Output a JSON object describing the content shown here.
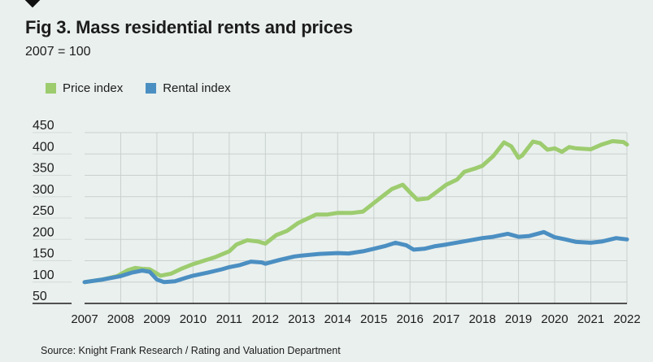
{
  "figure": {
    "title": "Fig 3. Mass residential rents and prices",
    "subtitle": "2007 = 100",
    "source": "Source: Knight Frank Research / Rating and Valuation Department",
    "icon": "diamond-marker-icon"
  },
  "colors": {
    "price": "#9dcc6f",
    "rental": "#4b8fc2",
    "grid": "#c9d0ce",
    "axis": "#1c1c1c",
    "background": "#eaf0ee"
  },
  "chart_data": {
    "type": "line",
    "title": "Fig 3. Mass residential rents and prices",
    "subtitle": "2007 = 100",
    "xlabel": "",
    "ylabel": "",
    "xlim": [
      2007,
      2022
    ],
    "ylim": [
      50,
      450
    ],
    "grid": true,
    "legend_position": "top-left",
    "x_ticks": [
      "2007",
      "2008",
      "2009",
      "2010",
      "2011",
      "2012",
      "2013",
      "2014",
      "2015",
      "2016",
      "2017",
      "2018",
      "2019",
      "2020",
      "2021",
      "2022"
    ],
    "y_ticks": [
      "50",
      "100",
      "150",
      "200",
      "250",
      "300",
      "350",
      "400",
      "450"
    ],
    "series": [
      {
        "name": "Price index",
        "key": "price",
        "points": [
          [
            2007.0,
            100
          ],
          [
            2007.5,
            106
          ],
          [
            2007.9,
            114
          ],
          [
            2008.2,
            128
          ],
          [
            2008.4,
            133
          ],
          [
            2008.6,
            131
          ],
          [
            2008.8,
            130
          ],
          [
            2009.0,
            120
          ],
          [
            2009.1,
            115
          ],
          [
            2009.4,
            120
          ],
          [
            2009.7,
            132
          ],
          [
            2010.0,
            142
          ],
          [
            2010.3,
            150
          ],
          [
            2010.6,
            158
          ],
          [
            2011.0,
            172
          ],
          [
            2011.2,
            188
          ],
          [
            2011.5,
            198
          ],
          [
            2011.8,
            195
          ],
          [
            2012.0,
            190
          ],
          [
            2012.3,
            210
          ],
          [
            2012.6,
            220
          ],
          [
            2012.9,
            238
          ],
          [
            2013.2,
            250
          ],
          [
            2013.4,
            258
          ],
          [
            2013.7,
            258
          ],
          [
            2014.0,
            262
          ],
          [
            2014.4,
            262
          ],
          [
            2014.7,
            265
          ],
          [
            2015.0,
            285
          ],
          [
            2015.3,
            305
          ],
          [
            2015.5,
            318
          ],
          [
            2015.8,
            328
          ],
          [
            2016.0,
            310
          ],
          [
            2016.2,
            293
          ],
          [
            2016.5,
            296
          ],
          [
            2016.8,
            315
          ],
          [
            2017.0,
            328
          ],
          [
            2017.3,
            340
          ],
          [
            2017.5,
            358
          ],
          [
            2017.8,
            366
          ],
          [
            2018.0,
            372
          ],
          [
            2018.3,
            395
          ],
          [
            2018.6,
            427
          ],
          [
            2018.8,
            418
          ],
          [
            2019.0,
            391
          ],
          [
            2019.1,
            396
          ],
          [
            2019.4,
            429
          ],
          [
            2019.6,
            425
          ],
          [
            2019.8,
            410
          ],
          [
            2020.0,
            413
          ],
          [
            2020.2,
            405
          ],
          [
            2020.4,
            416
          ],
          [
            2020.6,
            413
          ],
          [
            2021.0,
            411
          ],
          [
            2021.3,
            422
          ],
          [
            2021.6,
            430
          ],
          [
            2021.9,
            428
          ],
          [
            2022.0,
            422
          ]
        ]
      },
      {
        "name": "Rental index",
        "key": "rental",
        "points": [
          [
            2007.0,
            100
          ],
          [
            2007.5,
            106
          ],
          [
            2008.0,
            114
          ],
          [
            2008.3,
            122
          ],
          [
            2008.6,
            127
          ],
          [
            2008.8,
            124
          ],
          [
            2009.0,
            106
          ],
          [
            2009.2,
            100
          ],
          [
            2009.5,
            102
          ],
          [
            2009.8,
            110
          ],
          [
            2010.0,
            115
          ],
          [
            2010.4,
            122
          ],
          [
            2010.8,
            130
          ],
          [
            2011.0,
            135
          ],
          [
            2011.3,
            140
          ],
          [
            2011.6,
            148
          ],
          [
            2011.9,
            146
          ],
          [
            2012.0,
            143
          ],
          [
            2012.4,
            152
          ],
          [
            2012.8,
            160
          ],
          [
            2013.0,
            162
          ],
          [
            2013.5,
            166
          ],
          [
            2014.0,
            168
          ],
          [
            2014.3,
            167
          ],
          [
            2014.7,
            172
          ],
          [
            2015.0,
            178
          ],
          [
            2015.3,
            184
          ],
          [
            2015.6,
            192
          ],
          [
            2015.9,
            186
          ],
          [
            2016.1,
            176
          ],
          [
            2016.4,
            178
          ],
          [
            2016.7,
            184
          ],
          [
            2017.0,
            188
          ],
          [
            2017.4,
            194
          ],
          [
            2017.8,
            200
          ],
          [
            2018.0,
            203
          ],
          [
            2018.3,
            206
          ],
          [
            2018.7,
            213
          ],
          [
            2019.0,
            206
          ],
          [
            2019.3,
            208
          ],
          [
            2019.7,
            217
          ],
          [
            2020.0,
            205
          ],
          [
            2020.3,
            200
          ],
          [
            2020.6,
            194
          ],
          [
            2021.0,
            192
          ],
          [
            2021.3,
            195
          ],
          [
            2021.7,
            203
          ],
          [
            2022.0,
            200
          ]
        ]
      }
    ]
  }
}
